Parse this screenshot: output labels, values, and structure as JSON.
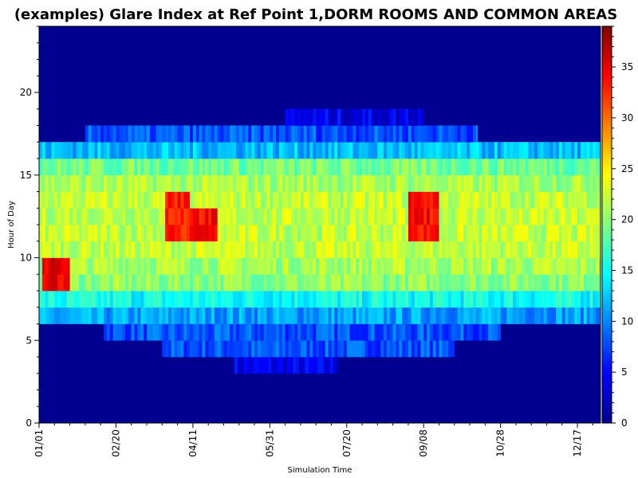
{
  "chart_data": {
    "type": "heatmap",
    "title": "(examples) Glare Index at Ref Point 1,DORM ROOMS AND COMMON AREAS",
    "xlabel": "Simulation Time",
    "ylabel": "Hour of Day",
    "x_tick_labels": [
      "01/01",
      "02/20",
      "04/11",
      "05/31",
      "07/20",
      "09/08",
      "10/28",
      "12/17"
    ],
    "x_tick_days": [
      0,
      50,
      100,
      150,
      200,
      250,
      300,
      350
    ],
    "xlim": [
      0,
      365
    ],
    "y_ticks": [
      0,
      5,
      10,
      15,
      20
    ],
    "ylim": [
      0,
      24
    ],
    "colorbar_ticks": [
      0,
      5,
      10,
      15,
      20,
      25,
      30,
      35
    ],
    "colorbar_range": [
      0,
      39
    ],
    "colormap": "jet",
    "hours": [
      3,
      4,
      5,
      6,
      7,
      8,
      9,
      10,
      11,
      12,
      13,
      14,
      15,
      16,
      17,
      18
    ],
    "daylight_start_day": [
      125,
      80,
      42,
      0,
      0,
      0,
      0,
      0,
      0,
      0,
      0,
      0,
      0,
      0,
      30,
      160
    ],
    "daylight_end_day": [
      195,
      270,
      300,
      365,
      365,
      365,
      365,
      365,
      365,
      365,
      365,
      365,
      365,
      365,
      285,
      250
    ],
    "hour_base_values": [
      4,
      8,
      8,
      11,
      15,
      20,
      21,
      22,
      22,
      22,
      22,
      21,
      19,
      12,
      8,
      4
    ],
    "hotspots": [
      {
        "day_start": 1,
        "day_end": 19,
        "hour_start": 8,
        "hour_end": 10,
        "value": 35
      },
      {
        "day_start": 81,
        "day_end": 98,
        "hour_start": 11,
        "hour_end": 14,
        "value": 33
      },
      {
        "day_start": 98,
        "day_end": 116,
        "hour_start": 11,
        "hour_end": 13,
        "value": 34
      },
      {
        "day_start": 240,
        "day_end": 260,
        "hour_start": 11,
        "hour_end": 14,
        "value": 34
      }
    ]
  }
}
